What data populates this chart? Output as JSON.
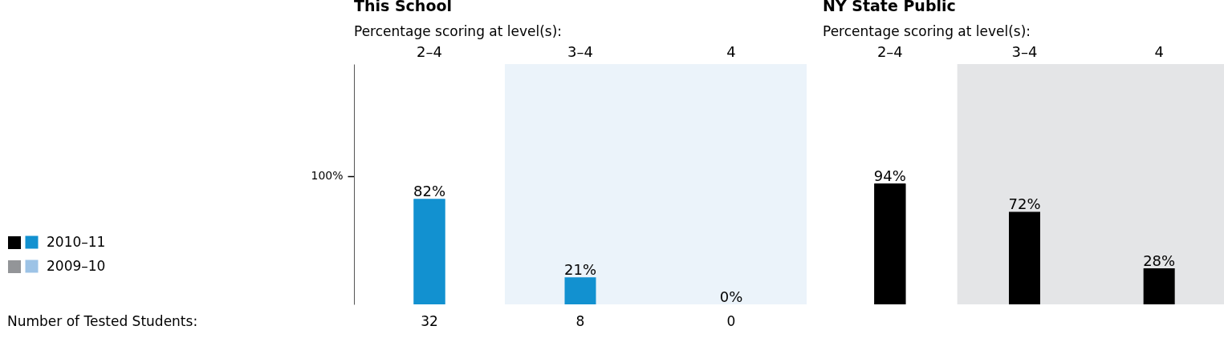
{
  "chart_data": [
    {
      "type": "bar",
      "title": "This School",
      "subtitle": "Percentage scoring at level(s):",
      "categories": [
        "2–4",
        "3–4",
        "4"
      ],
      "series": [
        {
          "name": "2010–11",
          "color": "#1291d0",
          "values": [
            82,
            21,
            0
          ],
          "value_labels": [
            "82%",
            "21%",
            "0%"
          ]
        },
        {
          "name": "2009–10",
          "color": "#9dc3e6",
          "values": [
            null,
            null,
            null
          ]
        }
      ],
      "ylim": [
        0,
        187
      ],
      "yticks": [
        {
          "value": 100,
          "label": "100%"
        }
      ],
      "legend": "left",
      "bands": [
        {
          "axis": "x",
          "from": "3–4",
          "to": "4",
          "color": "#ebf3fa"
        }
      ],
      "annotations": [
        "Number of Tested Students:",
        "32",
        "8",
        "0"
      ]
    },
    {
      "type": "bar",
      "title": "NY State Public",
      "subtitle": "Percentage scoring at level(s):",
      "categories": [
        "2–4",
        "3–4",
        "4"
      ],
      "series": [
        {
          "color": "#000000",
          "values": [
            94,
            72,
            28
          ],
          "value_labels": [
            "94%",
            "72%",
            "28%"
          ]
        },
        {
          "color": "#939598",
          "values": [
            null,
            null,
            null
          ]
        }
      ],
      "ylim": [
        0,
        187
      ],
      "tick_labels": "x",
      "bands": [
        {
          "axis": "x",
          "from": "3–4",
          "to": "4",
          "color": "#e4e5e7"
        }
      ]
    }
  ]
}
